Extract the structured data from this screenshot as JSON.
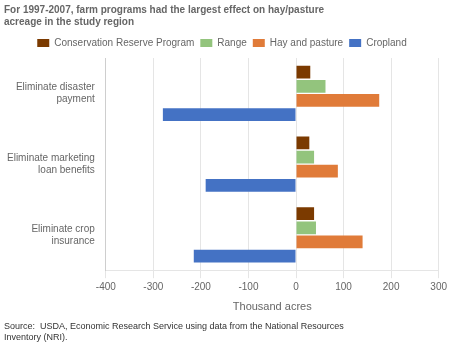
{
  "chart_data": {
    "type": "bar",
    "orientation": "horizontal",
    "title": "For 1997-2007, farm programs had the largest effect on hay/pasture\nacreage in the study region",
    "categories": [
      "Eliminate disaster\npayment",
      "Eliminate marketing\nloan benefits",
      "Eliminate crop\ninsurance"
    ],
    "series": [
      {
        "name": "Conservation Reserve Program",
        "color": "#7B3A00",
        "values": [
          30,
          28,
          38
        ]
      },
      {
        "name": "Range",
        "color": "#93C47D",
        "values": [
          62,
          38,
          42
        ]
      },
      {
        "name": "Hay and pasture",
        "color": "#E07B39",
        "values": [
          175,
          88,
          140
        ]
      },
      {
        "name": "Cropland",
        "color": "#4472C4",
        "values": [
          -280,
          -190,
          -215
        ]
      }
    ],
    "x_label": "Thousand acres",
    "xlim": [
      -400,
      300
    ],
    "xticks": [
      -400,
      -300,
      -200,
      -100,
      0,
      100,
      200,
      300
    ],
    "grid": true,
    "legend": "top",
    "annotations": [
      "Source:  USDA, Economic Research Service using data from the National Resources\nInventory (NRI)."
    ]
  }
}
